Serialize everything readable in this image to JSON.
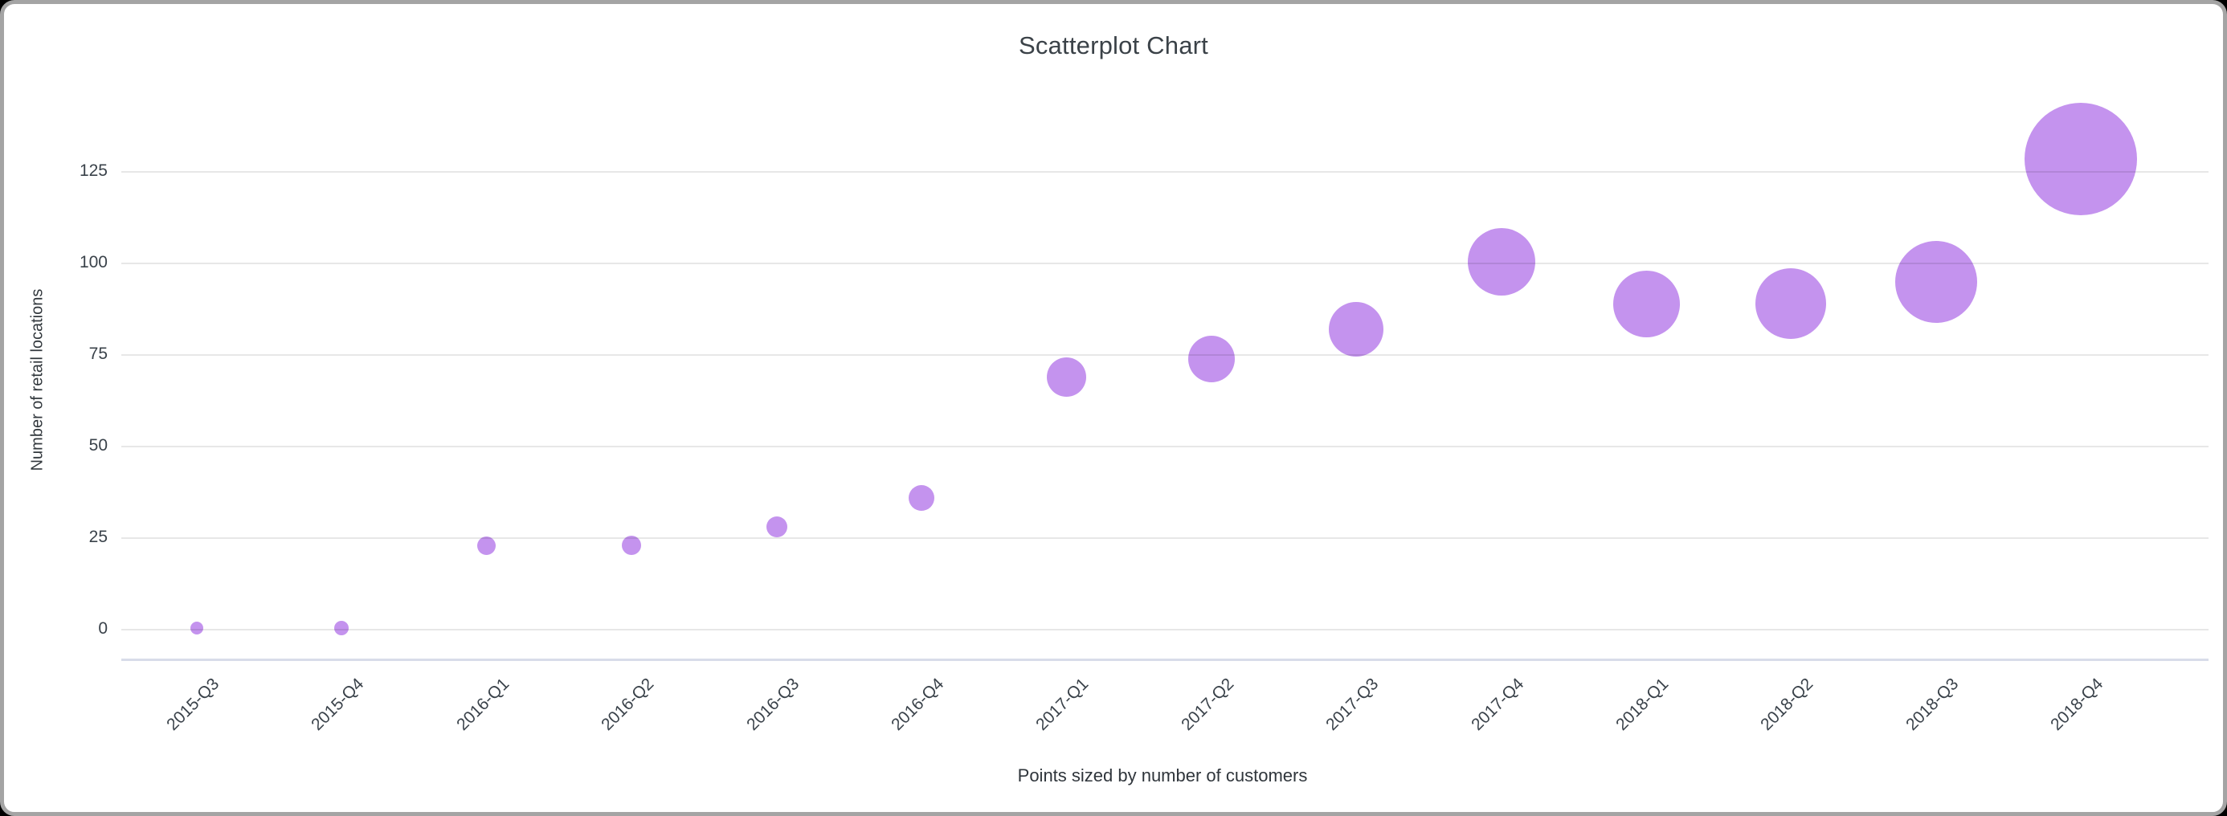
{
  "chart_data": {
    "type": "scatter",
    "title": "Scatterplot Chart",
    "ylabel": "Number of retail locations",
    "xlabel": "",
    "caption": "Points sized by number of customers",
    "legend": "none",
    "grid": true,
    "x_tick_rotation_deg": 45,
    "y_ticks": [
      0,
      25,
      50,
      75,
      100,
      125
    ],
    "ylim": [
      -8,
      148
    ],
    "categories": [
      "2015-Q3",
      "2015-Q4",
      "2016-Q1",
      "2016-Q2",
      "2016-Q3",
      "2016-Q4",
      "2017-Q1",
      "2017-Q2",
      "2017-Q3",
      "2017-Q4",
      "2018-Q1",
      "2018-Q2",
      "2018-Q3",
      "2018-Q4"
    ],
    "series": [
      {
        "name": "Number of retail locations (sized by number of customers)",
        "points": [
          {
            "x": "2015-Q3",
            "y": 0.5,
            "radius_px": 8
          },
          {
            "x": "2015-Q4",
            "y": 0.5,
            "radius_px": 9
          },
          {
            "x": "2016-Q1",
            "y": 23,
            "radius_px": 11.5
          },
          {
            "x": "2016-Q2",
            "y": 23,
            "radius_px": 12
          },
          {
            "x": "2016-Q3",
            "y": 28,
            "radius_px": 13
          },
          {
            "x": "2016-Q4",
            "y": 36,
            "radius_px": 16
          },
          {
            "x": "2017-Q1",
            "y": 69,
            "radius_px": 24.5
          },
          {
            "x": "2017-Q2",
            "y": 74,
            "radius_px": 29
          },
          {
            "x": "2017-Q3",
            "y": 82,
            "radius_px": 34
          },
          {
            "x": "2017-Q4",
            "y": 100.5,
            "radius_px": 42
          },
          {
            "x": "2018-Q1",
            "y": 89,
            "radius_px": 41.5
          },
          {
            "x": "2018-Q2",
            "y": 89,
            "radius_px": 44
          },
          {
            "x": "2018-Q3",
            "y": 95,
            "radius_px": 51
          },
          {
            "x": "2018-Q4",
            "y": 128.5,
            "radius_px": 70
          }
        ]
      }
    ],
    "point_color": "#c493ee",
    "colors": {
      "point": "#c493ee",
      "gridline": "#e7e7e7",
      "axis_line": "#d8dce9",
      "text": "#3a424a",
      "card_border": "#a4a4a4",
      "card_background": "#ffffff",
      "page_background": "#000000"
    }
  }
}
